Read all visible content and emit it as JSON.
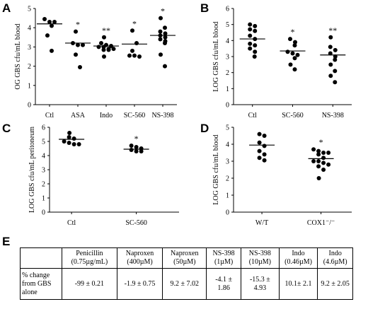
{
  "panels": [
    {
      "letter": "A",
      "chart_data": {
        "type": "scatter",
        "ylabel": "OG GBS cfu/mL  blood",
        "ylim": [
          0,
          5
        ],
        "yticks": [
          0,
          1,
          2,
          3,
          4,
          5
        ],
        "categories": [
          "Ctl",
          "ASA",
          "Indo",
          "SC-560",
          "NS-398"
        ],
        "points": [
          [
            4.45,
            4.3,
            4.3,
            4.1,
            3.6,
            2.8
          ],
          [
            3.8,
            3.2,
            3.1,
            3.1,
            2.6,
            1.95
          ],
          [
            3.5,
            3.2,
            3.1,
            3.05,
            3.0,
            3.0,
            2.9,
            2.9,
            2.85,
            2.85,
            2.5
          ],
          [
            3.85,
            3.2,
            2.8,
            2.55,
            2.55,
            2.5
          ],
          [
            4.5,
            4.0,
            3.8,
            3.7,
            3.6,
            3.5,
            3.4,
            3.3,
            3.2,
            2.6,
            2.0
          ]
        ],
        "means": [
          4.2,
          3.2,
          3.05,
          3.15,
          3.6
        ],
        "significance": [
          "",
          "*",
          "**",
          "*",
          "*"
        ]
      }
    },
    {
      "letter": "B",
      "chart_data": {
        "type": "scatter",
        "ylabel": "LOG GBS cfu/mL  blood",
        "ylim": [
          0,
          6
        ],
        "yticks": [
          0,
          1,
          2,
          3,
          4,
          5,
          6
        ],
        "categories": [
          "Ctl",
          "SC-560",
          "NS-398"
        ],
        "points": [
          [
            5.0,
            4.9,
            4.7,
            4.6,
            4.3,
            4.1,
            3.8,
            3.7,
            3.5,
            3.3,
            3.0
          ],
          [
            4.1,
            3.9,
            3.7,
            3.3,
            3.2,
            3.1,
            2.9,
            2.5,
            2.2
          ],
          [
            4.2,
            3.6,
            3.4,
            3.2,
            3.0,
            2.8,
            2.5,
            2.1,
            1.8,
            1.4
          ]
        ],
        "means": [
          4.1,
          3.35,
          3.1
        ],
        "significance": [
          "",
          "*",
          "**"
        ]
      }
    },
    {
      "letter": "C",
      "chart_data": {
        "type": "scatter",
        "ylabel": "LOG GBS cfu/mL  peritoneum",
        "ylim": [
          0,
          6
        ],
        "yticks": [
          0,
          1,
          2,
          3,
          4,
          5,
          6
        ],
        "categories": [
          "Ctl",
          "SC-560"
        ],
        "points": [
          [
            5.6,
            5.3,
            5.2,
            5.0,
            4.9,
            4.8,
            4.8
          ],
          [
            4.7,
            4.6,
            4.5,
            4.4,
            4.3,
            4.3
          ]
        ],
        "means": [
          5.15,
          4.45
        ],
        "significance": [
          "",
          "*"
        ]
      }
    },
    {
      "letter": "D",
      "chart_data": {
        "type": "scatter",
        "ylabel": "LOG GBS cfu/mL  blood",
        "ylim": [
          0,
          5
        ],
        "yticks": [
          0,
          1,
          2,
          3,
          4,
          5
        ],
        "categories": [
          "W/T",
          "COX1⁻/⁻"
        ],
        "points": [
          [
            4.6,
            4.5,
            4.1,
            3.9,
            3.6,
            3.4,
            3.2,
            3.05
          ],
          [
            3.7,
            3.6,
            3.5,
            3.5,
            3.4,
            3.2,
            3.0,
            3.0,
            2.9,
            2.8,
            2.7,
            2.5,
            2.0
          ]
        ],
        "means": [
          3.95,
          3.15
        ],
        "significance": [
          "",
          "*"
        ]
      }
    }
  ],
  "table": {
    "letter": "E",
    "headers": [
      "",
      "Penicillin (0.75µg/mL)",
      "Naproxen (400µM)",
      "Naproxen (50µM)",
      "NS-398 (1µM)",
      "NS-398 (10µM)",
      "Indo (0.46µM)",
      "Indo (4.6µM)"
    ],
    "row_label": "% change from GBS alone",
    "values": [
      "-99 ± 0.21",
      "-1.9 ± 0.75",
      "9.2 ± 7.02",
      "-4.1 ± 1.86",
      "-15.3 ± 4.93",
      "10.1± 2.1",
      "9.2 ± 2.05"
    ]
  }
}
